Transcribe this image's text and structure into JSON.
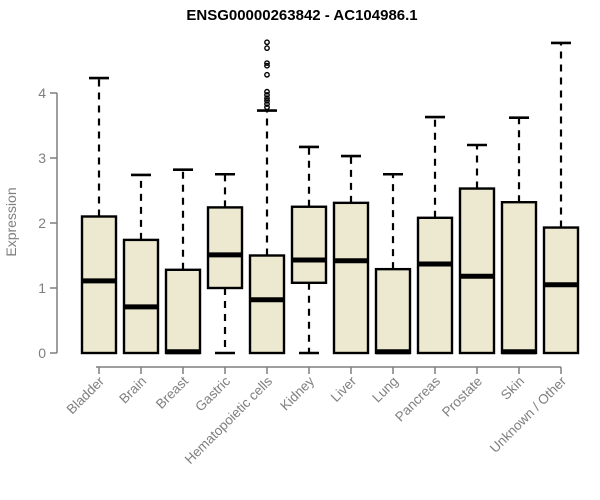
{
  "chart_data": {
    "type": "boxplot",
    "title": "ENSG00000263842 - AC104986.1",
    "xlabel": "",
    "ylabel": "Expression",
    "yticks": [
      0,
      1,
      2,
      3,
      4
    ],
    "ylim": [
      0,
      4.9
    ],
    "grid": false,
    "legend": "none",
    "categories": [
      "Bladder",
      "Brain",
      "Breast",
      "Gastric",
      "Hematopoietic cells",
      "Kidney",
      "Liver",
      "Lung",
      "Pancreas",
      "Prostate",
      "Skin",
      "Unknown / Other"
    ],
    "boxes": [
      {
        "category": "Bladder",
        "whisker_low": 0,
        "q1": 0,
        "median": 1.11,
        "q3": 2.1,
        "whisker_high": 4.23,
        "outliers": []
      },
      {
        "category": "Brain",
        "whisker_low": 0,
        "q1": 0,
        "median": 0.71,
        "q3": 1.74,
        "whisker_high": 2.74,
        "outliers": []
      },
      {
        "category": "Breast",
        "whisker_low": 0,
        "q1": 0,
        "median": 0.02,
        "q3": 1.28,
        "whisker_high": 2.82,
        "outliers": []
      },
      {
        "category": "Gastric",
        "whisker_low": 0,
        "q1": 1.0,
        "median": 1.51,
        "q3": 2.24,
        "whisker_high": 2.75,
        "outliers": []
      },
      {
        "category": "Hematopoietic cells",
        "whisker_low": 0,
        "q1": 0,
        "median": 0.82,
        "q3": 1.5,
        "whisker_high": 3.73,
        "outliers": [
          3.78,
          3.83,
          3.88,
          3.92,
          3.97,
          4.02,
          4.28,
          4.42,
          4.46,
          4.69,
          4.78
        ]
      },
      {
        "category": "Kidney",
        "whisker_low": 0,
        "q1": 1.08,
        "median": 1.43,
        "q3": 2.25,
        "whisker_high": 3.17,
        "outliers": []
      },
      {
        "category": "Liver",
        "whisker_low": 0,
        "q1": 0,
        "median": 1.42,
        "q3": 2.31,
        "whisker_high": 3.03,
        "outliers": []
      },
      {
        "category": "Lung",
        "whisker_low": 0,
        "q1": 0,
        "median": 0.02,
        "q3": 1.29,
        "whisker_high": 2.75,
        "outliers": []
      },
      {
        "category": "Pancreas",
        "whisker_low": 0,
        "q1": 0,
        "median": 1.37,
        "q3": 2.08,
        "whisker_high": 3.63,
        "outliers": []
      },
      {
        "category": "Prostate",
        "whisker_low": 0,
        "q1": 0,
        "median": 1.18,
        "q3": 2.53,
        "whisker_high": 3.2,
        "outliers": []
      },
      {
        "category": "Skin",
        "whisker_low": 0,
        "q1": 0,
        "median": 0.02,
        "q3": 2.32,
        "whisker_high": 3.62,
        "outliers": []
      },
      {
        "category": "Unknown / Other",
        "whisker_low": 0,
        "q1": 0,
        "median": 1.05,
        "q3": 1.93,
        "whisker_high": 4.77,
        "outliers": []
      }
    ],
    "colors": {
      "box_fill": "#EDE9D0",
      "box_stroke": "#000000",
      "median": "#000000",
      "whisker": "#000000",
      "axis": "#7f7f7f",
      "tick_label": "#7f7f7f",
      "title": "#000000",
      "background": "#ffffff"
    }
  }
}
